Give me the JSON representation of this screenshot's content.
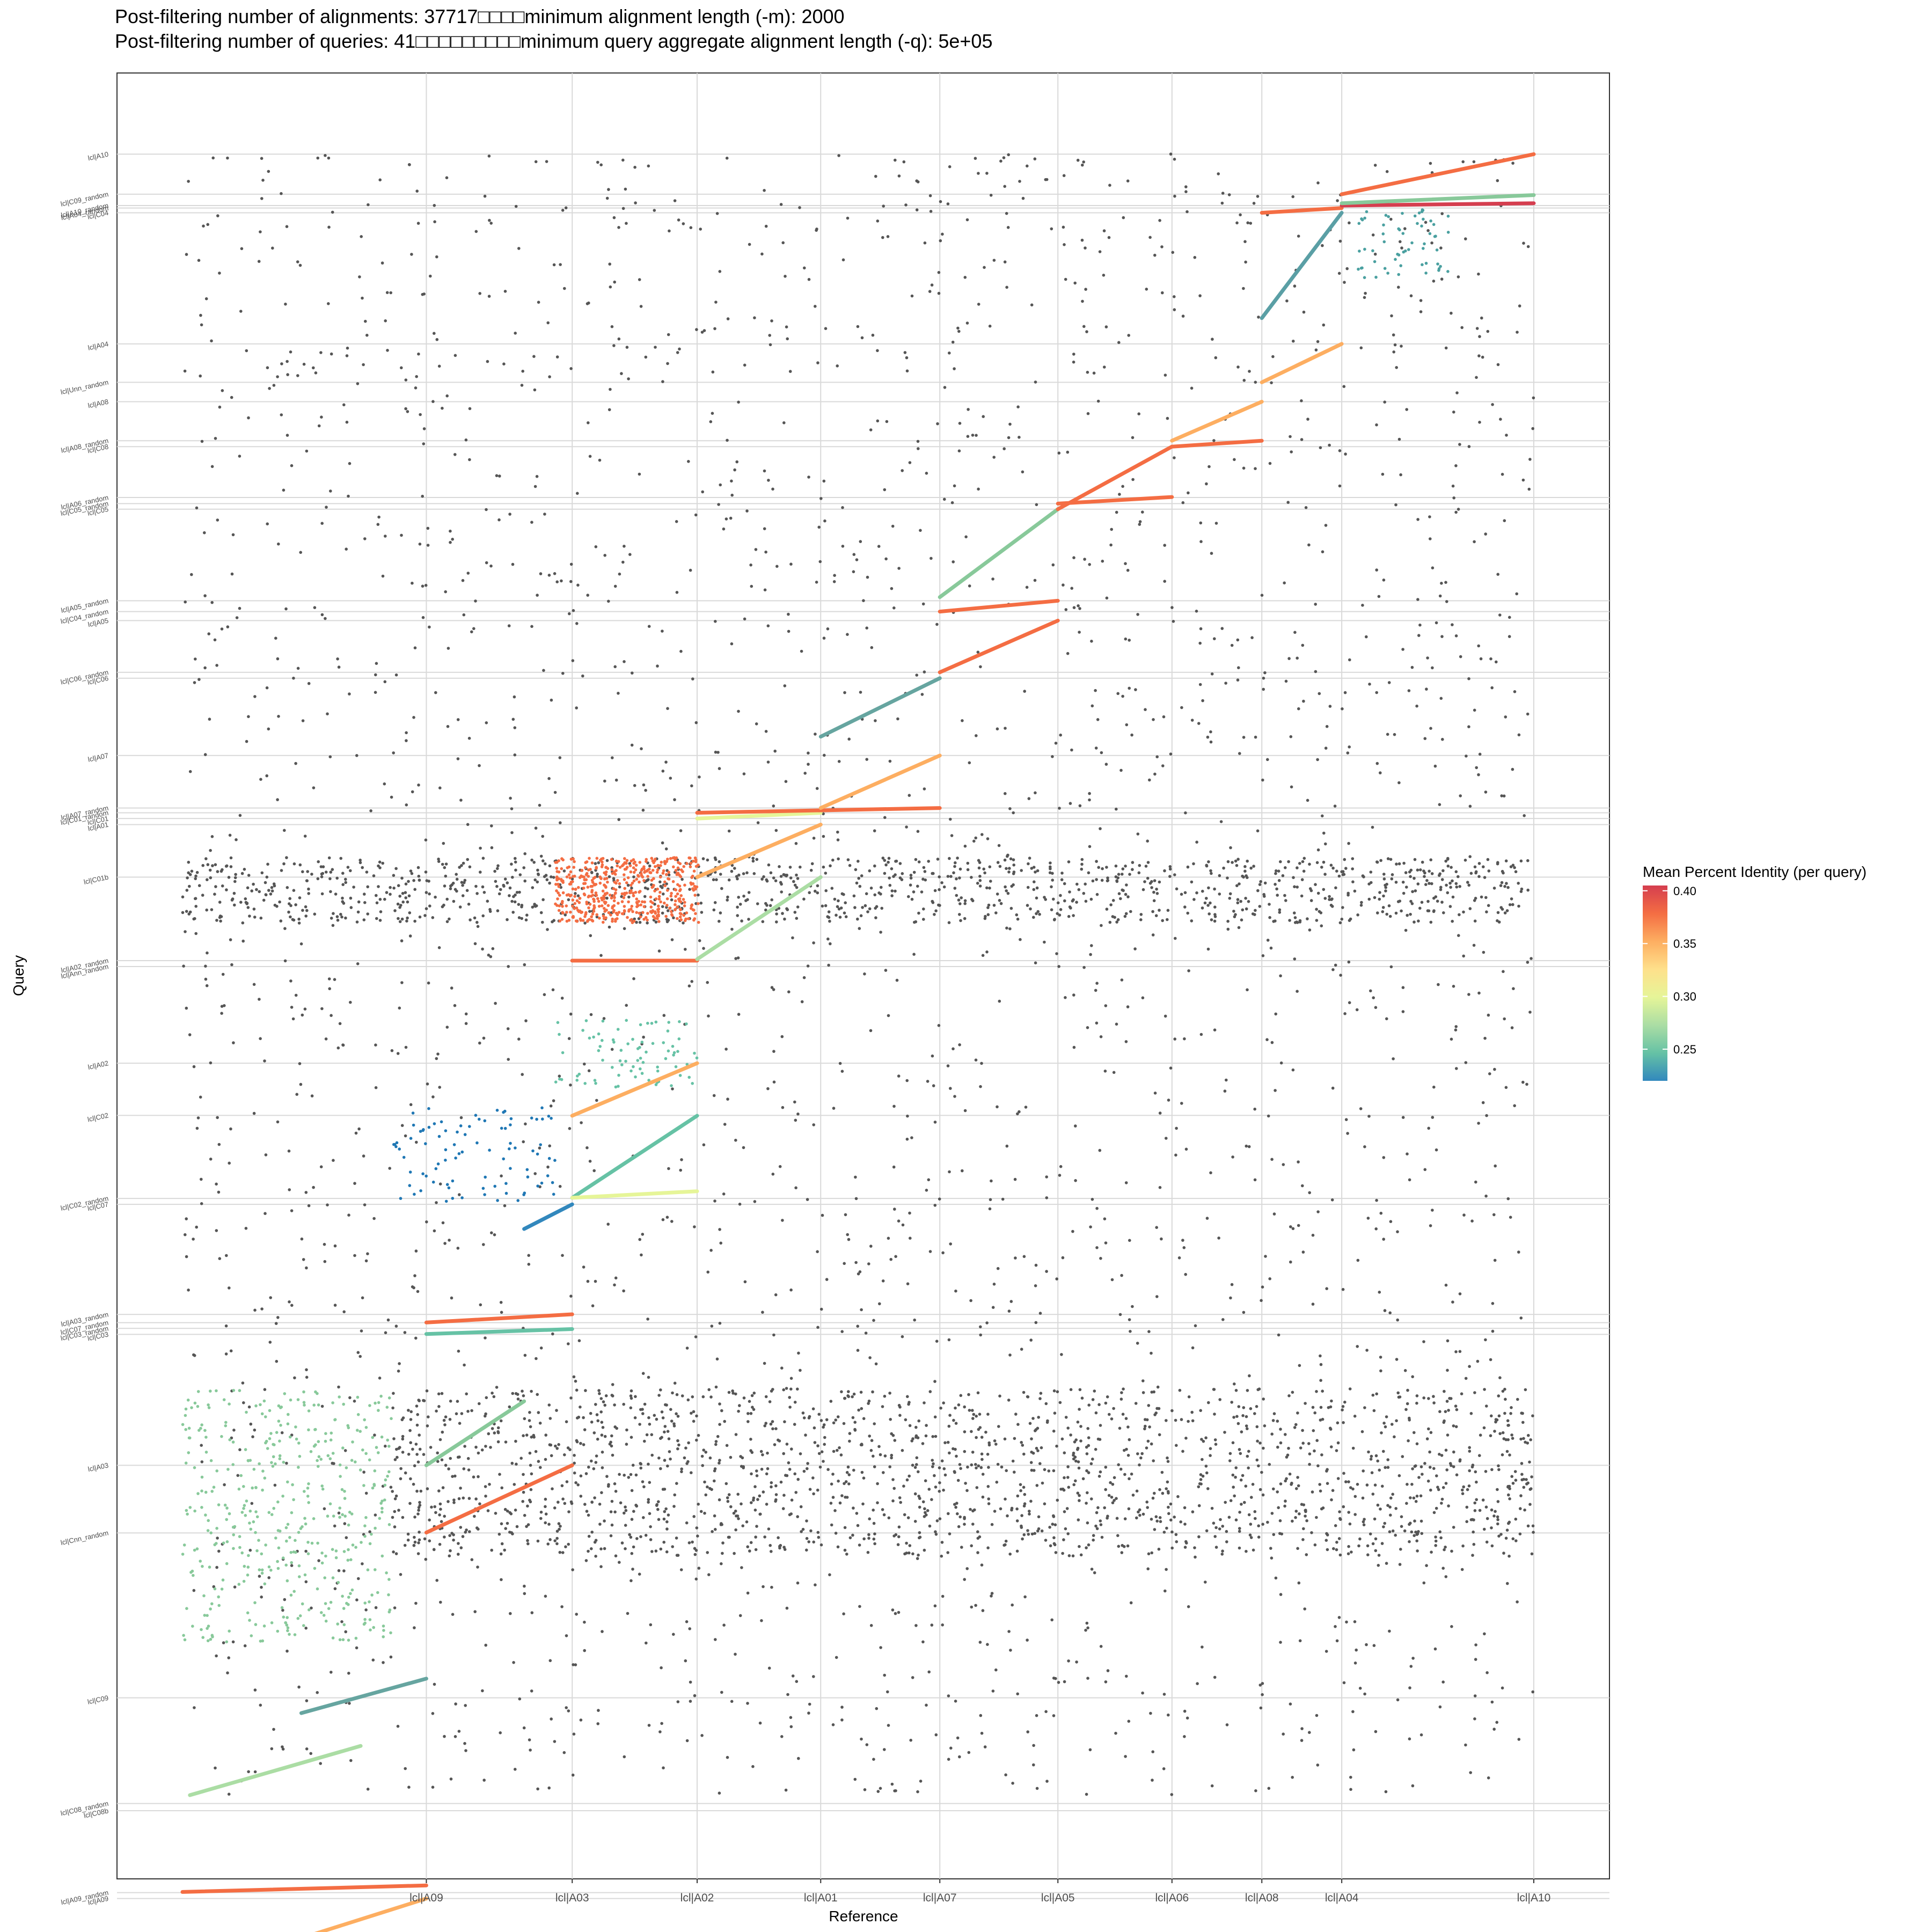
{
  "chart_data": {
    "type": "scatter",
    "title_line1": "Post-filtering number of alignments: 37717□□□□minimum alignment length (-m): 2000",
    "title_line2": "Post-filtering number of queries: 41□□□□□□□□□minimum query aggregate alignment length (-q): 5e+05",
    "xlabel": "Reference",
    "ylabel": "Query",
    "x_ticks": [
      "lcl|A09",
      "lcl|A03",
      "lcl|A02",
      "lcl|A01",
      "lcl|A07",
      "lcl|A05",
      "lcl|A06",
      "lcl|A08",
      "lcl|A04",
      "lcl|A10"
    ],
    "x_boundaries": [
      0.0,
      0.1642,
      0.2624,
      0.3465,
      0.4297,
      0.5099,
      0.5894,
      0.6662,
      0.7267,
      0.7805
    ],
    "x_max": 0.9098,
    "y_ticks": [
      {
        "label": "lcl|A10",
        "pos": 0.9999
      },
      {
        "label": "lcl|C09_random",
        "pos": 0.9755
      },
      {
        "label": "lcl|A10_random",
        "pos": 0.9686
      },
      {
        "label": "lcl|A04_random",
        "pos": 0.9671
      },
      {
        "label": "lcl|C04",
        "pos": 0.9642
      },
      {
        "label": "lcl|A04",
        "pos": 0.8843
      },
      {
        "label": "lcl|Unn_random",
        "pos": 0.8609
      },
      {
        "label": "lcl|A08",
        "pos": 0.8491
      },
      {
        "label": "lcl|A08_random",
        "pos": 0.8253
      },
      {
        "label": "lcl|C08",
        "pos": 0.8217
      },
      {
        "label": "lcl|A06_random",
        "pos": 0.7907
      },
      {
        "label": "lcl|C05_random",
        "pos": 0.787
      },
      {
        "label": "lcl|C05",
        "pos": 0.7836
      },
      {
        "label": "lcl|A05_random",
        "pos": 0.7278
      },
      {
        "label": "lcl|C04_random",
        "pos": 0.7212
      },
      {
        "label": "lcl|A05",
        "pos": 0.7157
      },
      {
        "label": "lcl|C06_random",
        "pos": 0.6842
      },
      {
        "label": "lcl|C06",
        "pos": 0.6806
      },
      {
        "label": "lcl|A07",
        "pos": 0.6335
      },
      {
        "label": "lcl|A07_random",
        "pos": 0.6015
      },
      {
        "label": "lcl|C01_random",
        "pos": 0.5986
      },
      {
        "label": "lcl|C01",
        "pos": 0.5951
      },
      {
        "label": "lcl|A01",
        "pos": 0.5914
      },
      {
        "label": "lcl|C01b",
        "pos": 0.5594
      },
      {
        "label": "lcl|A02_random",
        "pos": 0.5085
      },
      {
        "label": "lcl|Ann_random",
        "pos": 0.5049
      },
      {
        "label": "lcl|A02",
        "pos": 0.446
      },
      {
        "label": "lcl|C02",
        "pos": 0.4142
      },
      {
        "label": "lcl|C02_random",
        "pos": 0.3636
      },
      {
        "label": "lcl|C07",
        "pos": 0.36
      },
      {
        "label": "lcl|A03_random",
        "pos": 0.2929
      },
      {
        "label": "lcl|C07_random",
        "pos": 0.2879
      },
      {
        "label": "lcl|C03_random",
        "pos": 0.2844
      },
      {
        "label": "lcl|C03",
        "pos": 0.2808
      },
      {
        "label": "lcl|A03",
        "pos": 0.201
      },
      {
        "label": "lcl|Cnn_random",
        "pos": 0.1598
      },
      {
        "label": "lcl|C09",
        "pos": 0.0593
      },
      {
        "label": "lcl|C08_random",
        "pos": -0.0051
      },
      {
        "label": "lcl|C08b",
        "pos": -0.0095
      },
      {
        "label": "lcl|A09_random",
        "pos": -0.0594
      },
      {
        "label": "lcl|A09",
        "pos": -0.063
      }
    ],
    "y_min": -0.16,
    "y_max": 1.05,
    "grid": true,
    "legend": {
      "title": "Mean Percent Identity (per query)",
      "placement": "right",
      "min": 0.22,
      "max": 0.405,
      "ticks": [
        0.25,
        0.3,
        0.35,
        0.4
      ],
      "tick_labels": [
        "0.25",
        "0.30",
        "0.35",
        "0.40"
      ],
      "colors": [
        "#3288bd",
        "#66c2a5",
        "#abdda4",
        "#e6f598",
        "#fee08b",
        "#fdae61",
        "#f46d43",
        "#d53e4f"
      ]
    },
    "diagonal_segments": [
      {
        "x0": 0.0,
        "x1": 0.1642,
        "y0": -0.11,
        "y1": -0.063,
        "color": "#fdae61"
      },
      {
        "x0": 0.0,
        "x1": 0.1642,
        "y0": -0.059,
        "y1": -0.055,
        "color": "#f46d43"
      },
      {
        "x0": 0.005,
        "x1": 0.12,
        "y0": 0.0,
        "y1": 0.03,
        "color": "#abdda4"
      },
      {
        "x0": 0.08,
        "x1": 0.1642,
        "y0": 0.05,
        "y1": 0.071,
        "color": "#66a5a0"
      },
      {
        "x0": 0.1642,
        "x1": 0.2624,
        "y0": 0.16,
        "y1": 0.201,
        "color": "#f46d43"
      },
      {
        "x0": 0.1642,
        "x1": 0.23,
        "y0": 0.201,
        "y1": 0.24,
        "color": "#88c99a"
      },
      {
        "x0": 0.1642,
        "x1": 0.2624,
        "y0": 0.281,
        "y1": 0.284,
        "color": "#66c2a5"
      },
      {
        "x0": 0.1642,
        "x1": 0.2624,
        "y0": 0.288,
        "y1": 0.293,
        "color": "#f46d43"
      },
      {
        "x0": 0.23,
        "x1": 0.2624,
        "y0": 0.345,
        "y1": 0.36,
        "color": "#3288bd"
      },
      {
        "x0": 0.2624,
        "x1": 0.3465,
        "y0": 0.364,
        "y1": 0.414,
        "color": "#66c2a5"
      },
      {
        "x0": 0.2624,
        "x1": 0.3465,
        "y0": 0.364,
        "y1": 0.368,
        "color": "#e6f598"
      },
      {
        "x0": 0.2624,
        "x1": 0.3465,
        "y0": 0.414,
        "y1": 0.446,
        "color": "#fdae61"
      },
      {
        "x0": 0.2624,
        "x1": 0.3465,
        "y0": 0.5085,
        "y1": 0.5085,
        "color": "#f46d43"
      },
      {
        "x0": 0.3465,
        "x1": 0.4297,
        "y0": 0.5094,
        "y1": 0.5594,
        "color": "#abdda4"
      },
      {
        "x0": 0.3465,
        "x1": 0.4297,
        "y0": 0.5594,
        "y1": 0.5914,
        "color": "#fdae61"
      },
      {
        "x0": 0.3465,
        "x1": 0.4297,
        "y0": 0.5951,
        "y1": 0.5986,
        "color": "#e6f598"
      },
      {
        "x0": 0.3465,
        "x1": 0.5099,
        "y0": 0.5986,
        "y1": 0.6015,
        "color": "#f46d43"
      },
      {
        "x0": 0.4297,
        "x1": 0.5099,
        "y0": 0.6015,
        "y1": 0.6335,
        "color": "#fdae61"
      },
      {
        "x0": 0.4297,
        "x1": 0.5099,
        "y0": 0.645,
        "y1": 0.6806,
        "color": "#66a5a0"
      },
      {
        "x0": 0.5099,
        "x1": 0.5894,
        "y0": 0.6842,
        "y1": 0.7157,
        "color": "#f46d43"
      },
      {
        "x0": 0.5099,
        "x1": 0.5894,
        "y0": 0.7212,
        "y1": 0.7278,
        "color": "#f46d43"
      },
      {
        "x0": 0.5099,
        "x1": 0.5894,
        "y0": 0.73,
        "y1": 0.7836,
        "color": "#88c99a"
      },
      {
        "x0": 0.5894,
        "x1": 0.6662,
        "y0": 0.7836,
        "y1": 0.8217,
        "color": "#f46d43"
      },
      {
        "x0": 0.5894,
        "x1": 0.6662,
        "y0": 0.787,
        "y1": 0.791,
        "color": "#f46d43"
      },
      {
        "x0": 0.6662,
        "x1": 0.7267,
        "y0": 0.8253,
        "y1": 0.8491,
        "color": "#fdae61"
      },
      {
        "x0": 0.6662,
        "x1": 0.7267,
        "y0": 0.8217,
        "y1": 0.8253,
        "color": "#f46d43"
      },
      {
        "x0": 0.7267,
        "x1": 0.7805,
        "y0": 0.8609,
        "y1": 0.8843,
        "color": "#fdae61"
      },
      {
        "x0": 0.7267,
        "x1": 0.7805,
        "y0": 0.9,
        "y1": 0.9642,
        "color": "#5a9fa5"
      },
      {
        "x0": 0.7267,
        "x1": 0.7805,
        "y0": 0.9642,
        "y1": 0.9671,
        "color": "#f46d43"
      },
      {
        "x0": 0.7805,
        "x1": 0.9098,
        "y0": 0.9686,
        "y1": 0.97,
        "color": "#d53e4f"
      },
      {
        "x0": 0.7805,
        "x1": 0.9098,
        "y0": 0.9755,
        "y1": 0.9999,
        "color": "#f46d43"
      },
      {
        "x0": 0.7805,
        "x1": 0.9098,
        "y0": 0.97,
        "y1": 0.975,
        "color": "#88c99a"
      }
    ]
  }
}
